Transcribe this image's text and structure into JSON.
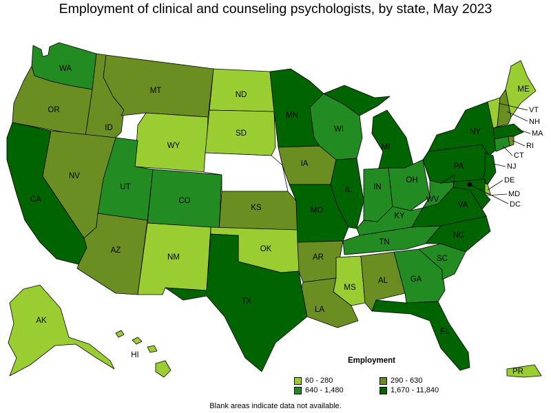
{
  "title": "Employment of clinical and counseling psychologists, by state, May 2023",
  "legend": {
    "title": "Employment",
    "items": [
      {
        "label": "60 - 280",
        "color": "#9acd32"
      },
      {
        "label": "290 - 630",
        "color": "#6b8e23"
      },
      {
        "label": "640 - 1,480",
        "color": "#228b22"
      },
      {
        "label": "1,670 - 11,840",
        "color": "#006400"
      }
    ]
  },
  "footnote": "Blank areas indicate data not available.",
  "states": {
    "WA": {
      "label": "WA",
      "tier": 2
    },
    "OR": {
      "label": "OR",
      "tier": 1
    },
    "CA": {
      "label": "CA",
      "tier": 3
    },
    "ID": {
      "label": "ID",
      "tier": 1
    },
    "NV": {
      "label": "NV",
      "tier": 1
    },
    "MT": {
      "label": "MT",
      "tier": 1
    },
    "WY": {
      "label": "WY",
      "tier": 0
    },
    "UT": {
      "label": "UT",
      "tier": 2
    },
    "AZ": {
      "label": "AZ",
      "tier": 1
    },
    "CO": {
      "label": "CO",
      "tier": 2
    },
    "NM": {
      "label": "NM",
      "tier": 0
    },
    "ND": {
      "label": "ND",
      "tier": 0
    },
    "SD": {
      "label": "SD",
      "tier": 0
    },
    "NE": {
      "label": "",
      "tier": -1
    },
    "KS": {
      "label": "KS",
      "tier": 1
    },
    "OK": {
      "label": "OK",
      "tier": 0
    },
    "TX": {
      "label": "TX",
      "tier": 3
    },
    "MN": {
      "label": "MN",
      "tier": 3
    },
    "IA": {
      "label": "IA",
      "tier": 1
    },
    "MO": {
      "label": "MO",
      "tier": 3
    },
    "AR": {
      "label": "AR",
      "tier": 1
    },
    "LA": {
      "label": "LA",
      "tier": 1
    },
    "WI": {
      "label": "WI",
      "tier": 2
    },
    "IL": {
      "label": "IL",
      "tier": 3
    },
    "MI": {
      "label": "MI",
      "tier": 3
    },
    "IN": {
      "label": "IN",
      "tier": 2
    },
    "OH": {
      "label": "OH",
      "tier": 2
    },
    "KY": {
      "label": "KY",
      "tier": 2
    },
    "TN": {
      "label": "TN",
      "tier": 2
    },
    "MS": {
      "label": "MS",
      "tier": 0
    },
    "AL": {
      "label": "AL",
      "tier": 1
    },
    "GA": {
      "label": "GA",
      "tier": 2
    },
    "FL": {
      "label": "FL",
      "tier": 3
    },
    "SC": {
      "label": "SC",
      "tier": 2
    },
    "NC": {
      "label": "NC",
      "tier": 3
    },
    "VA": {
      "label": "VA",
      "tier": 3
    },
    "WV": {
      "label": "WV",
      "tier": 2
    },
    "PA": {
      "label": "PA",
      "tier": 3
    },
    "NY": {
      "label": "NY",
      "tier": 3
    },
    "ME": {
      "label": "ME",
      "tier": 0
    },
    "VT": {
      "label": "VT",
      "tier": 0
    },
    "NH": {
      "label": "NH",
      "tier": 1
    },
    "MA": {
      "label": "MA",
      "tier": 3
    },
    "CT": {
      "label": "CT",
      "tier": 2
    },
    "RI": {
      "label": "RI",
      "tier": 1
    },
    "NJ": {
      "label": "NJ",
      "tier": 3
    },
    "DE": {
      "label": "DE",
      "tier": 0
    },
    "MD": {
      "label": "MD",
      "tier": 3
    },
    "DC": {
      "label": "DC",
      "tier": 3
    },
    "AK": {
      "label": "AK",
      "tier": 0
    },
    "HI": {
      "label": "HI",
      "tier": 0
    },
    "PR": {
      "label": "PR",
      "tier": 0
    }
  }
}
